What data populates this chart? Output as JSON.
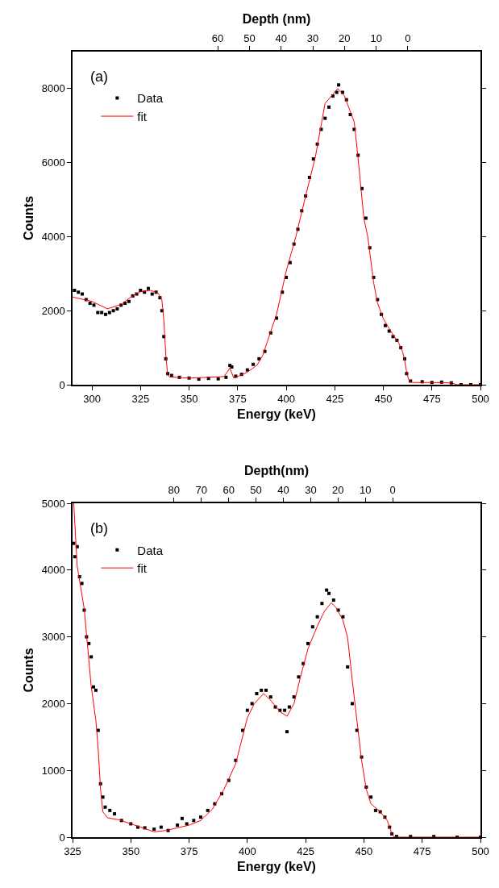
{
  "chart_data": [
    {
      "type": "scatter",
      "xlabel": "Energy (keV)",
      "ylabel": "Counts",
      "x2label": "Depth (nm)",
      "annotations": [
        "(a)"
      ],
      "xlim": [
        290,
        500
      ],
      "xticks": [
        300,
        325,
        350,
        375,
        400,
        425,
        450,
        475,
        500
      ],
      "ylim": [
        0,
        9000
      ],
      "yticks": [
        0,
        2000,
        4000,
        6000,
        8000
      ],
      "x2lim": [
        105.8,
        -22.9
      ],
      "x2ticks": [
        60,
        50,
        40,
        30,
        20,
        10,
        0
      ],
      "grid": false,
      "legend": "top left",
      "series": [
        {
          "name": "Data",
          "color": "#000000",
          "marker": "square",
          "x": [
            291,
            293,
            295,
            297,
            299,
            301,
            303,
            305,
            307,
            309,
            311,
            313,
            315,
            317,
            319,
            321,
            323,
            325,
            327,
            329,
            331,
            333,
            335,
            336,
            337,
            338,
            339,
            341,
            345,
            350,
            355,
            360,
            365,
            369,
            371,
            372,
            374,
            377,
            380,
            383,
            386,
            389,
            392,
            395,
            398,
            400,
            402,
            404,
            406,
            408,
            410,
            412,
            414,
            416,
            418,
            420,
            422,
            424,
            426,
            427,
            429,
            431,
            433,
            435,
            437,
            439,
            441,
            443,
            445,
            447,
            449,
            451,
            453,
            455,
            457,
            459,
            461,
            462,
            464,
            470,
            475,
            480,
            485,
            490,
            495,
            500
          ],
          "values": [
            2550,
            2500,
            2450,
            2300,
            2200,
            2150,
            1950,
            1950,
            1900,
            1950,
            2000,
            2050,
            2150,
            2200,
            2250,
            2400,
            2450,
            2550,
            2500,
            2600,
            2450,
            2500,
            2350,
            2000,
            1300,
            700,
            300,
            250,
            200,
            180,
            150,
            170,
            160,
            200,
            520,
            480,
            230,
            280,
            400,
            550,
            700,
            900,
            1400,
            1800,
            2500,
            2900,
            3300,
            3800,
            4200,
            4700,
            5100,
            5600,
            6100,
            6500,
            6900,
            7200,
            7500,
            7800,
            7900,
            8100,
            7900,
            7700,
            7300,
            6900,
            6200,
            5300,
            4500,
            3700,
            2900,
            2300,
            1900,
            1600,
            1450,
            1300,
            1200,
            1000,
            700,
            300,
            100,
            80,
            60,
            70,
            50,
            0,
            0,
            0
          ]
        },
        {
          "name": "fit",
          "type": "line",
          "color": "#ff0000",
          "marker": "none",
          "x": [
            290,
            300,
            308,
            315,
            320,
            325,
            330,
            334,
            336,
            337,
            338,
            339,
            340,
            350,
            360,
            368,
            371,
            373,
            375,
            380,
            385,
            388,
            390,
            395,
            400,
            405,
            410,
            415,
            420,
            426.5,
            430,
            435,
            437,
            440,
            442,
            445,
            447,
            450,
            455,
            458,
            460,
            461,
            462,
            463,
            465,
            475,
            485,
            488,
            500
          ],
          "values": [
            2370,
            2250,
            2050,
            2170,
            2370,
            2510,
            2550,
            2480,
            2290,
            1740,
            800,
            260,
            210,
            180,
            200,
            220,
            450,
            180,
            220,
            340,
            530,
            800,
            1120,
            1900,
            3070,
            4010,
            5100,
            6150,
            7600,
            8000,
            7800,
            7100,
            6120,
            4480,
            4000,
            2760,
            2210,
            1780,
            1350,
            1120,
            880,
            650,
            340,
            140,
            60,
            60,
            50,
            0,
            0
          ]
        }
      ]
    },
    {
      "type": "scatter",
      "xlabel": "Energy (keV)",
      "ylabel": "Counts",
      "x2label": "Depth(nm)",
      "annotations": [
        "(b)"
      ],
      "xlim": [
        325,
        500
      ],
      "xticks": [
        325,
        350,
        375,
        400,
        425,
        450,
        475,
        500
      ],
      "ylim": [
        0,
        5000
      ],
      "yticks": [
        0,
        1000,
        2000,
        3000,
        4000,
        5000
      ],
      "x2lim": [
        117.1,
        -32.1
      ],
      "x2ticks": [
        80,
        70,
        60,
        50,
        40,
        30,
        20,
        10,
        0
      ],
      "grid": false,
      "legend": "top left",
      "series": [
        {
          "name": "Data",
          "color": "#000000",
          "marker": "square",
          "x": [
            325.5,
            326,
            327,
            328,
            329,
            330,
            331,
            332,
            333,
            334,
            335,
            336,
            337,
            338,
            339,
            341,
            343,
            346,
            350,
            353,
            356,
            360,
            363,
            366,
            370,
            372,
            374,
            377,
            380,
            383,
            386,
            389,
            392,
            395,
            398,
            400,
            402,
            404,
            406,
            408,
            410,
            412,
            414,
            416,
            417,
            418,
            420,
            422,
            424,
            426,
            428,
            430,
            432,
            434,
            435,
            437,
            439,
            441,
            443,
            445,
            447,
            449,
            451,
            453,
            455,
            457,
            459,
            461,
            462,
            464,
            470,
            480,
            490,
            500
          ],
          "values": [
            4400,
            4200,
            4350,
            3900,
            3800,
            3400,
            3000,
            2900,
            2700,
            2250,
            2200,
            1600,
            800,
            600,
            450,
            400,
            350,
            250,
            200,
            150,
            140,
            120,
            150,
            100,
            180,
            280,
            200,
            250,
            300,
            400,
            500,
            650,
            850,
            1150,
            1600,
            1900,
            2000,
            2150,
            2200,
            2200,
            2100,
            1950,
            1900,
            1900,
            1580,
            1950,
            2100,
            2400,
            2600,
            2900,
            3150,
            3300,
            3500,
            3700,
            3650,
            3550,
            3400,
            3300,
            2550,
            2000,
            1600,
            1200,
            750,
            600,
            400,
            380,
            300,
            150,
            50,
            10,
            10,
            10,
            0,
            0
          ]
        },
        {
          "name": "fit",
          "type": "line",
          "color": "#ff0000",
          "marker": "none",
          "x": [
            325.5,
            327,
            330,
            333,
            335,
            336,
            337,
            338,
            340,
            345,
            350,
            355,
            360,
            365,
            370,
            375,
            380,
            385,
            390,
            395,
            400,
            403,
            407,
            410,
            414,
            417,
            420,
            423,
            426,
            430,
            433,
            436,
            438,
            441,
            443,
            445,
            447,
            449,
            451,
            453,
            457,
            460,
            462,
            463,
            500
          ],
          "values": [
            5000,
            4060,
            3420,
            2260,
            1750,
            1320,
            720,
            380,
            290,
            260,
            200,
            140,
            80,
            100,
            140,
            180,
            250,
            420,
            720,
            1100,
            1790,
            2000,
            2150,
            2050,
            1880,
            1810,
            2000,
            2430,
            2820,
            3160,
            3380,
            3510,
            3440,
            3250,
            2990,
            2350,
            1750,
            1150,
            720,
            500,
            380,
            250,
            50,
            0,
            0
          ]
        }
      ]
    }
  ]
}
